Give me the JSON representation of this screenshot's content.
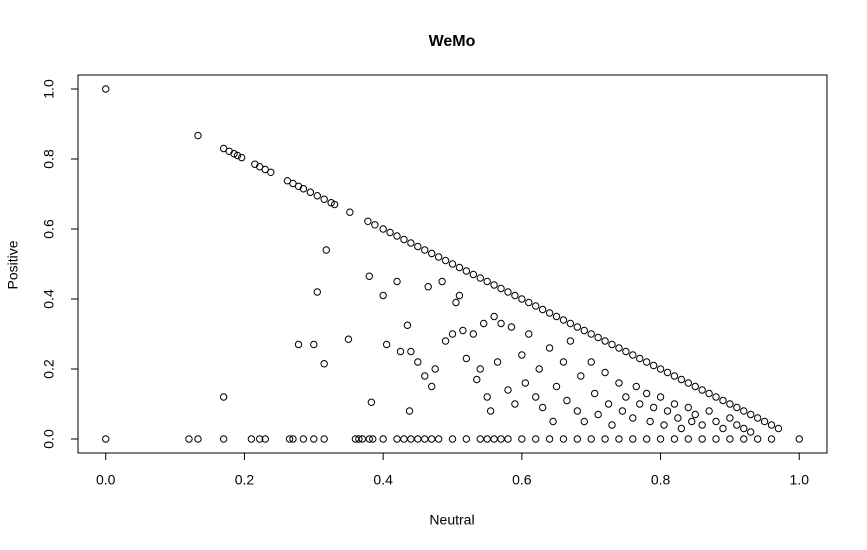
{
  "chart_data": {
    "type": "scatter",
    "title": "WeMo",
    "x_label": "Neutral",
    "y_label": "Positive",
    "xlim": [
      -0.04,
      1.04
    ],
    "ylim": [
      -0.04,
      1.04
    ],
    "xticks": [
      {
        "value": 0,
        "label": "0.0"
      },
      0.2,
      0.4,
      0.6,
      0.8,
      {
        "value": 1,
        "label": "1.0"
      }
    ],
    "yticks": [
      {
        "value": 0,
        "label": "0.0"
      },
      0.2,
      0.4,
      0.6,
      0.8,
      {
        "value": 1,
        "label": "1.0"
      }
    ],
    "color": "#000000",
    "x": [
      0,
      0.133,
      0.17,
      0.178,
      0.185,
      0.19,
      0.196,
      0.215,
      0.222,
      0.23,
      0.238,
      0.262,
      0.27,
      0.278,
      0.285,
      0.295,
      0.305,
      0.315,
      0.325,
      0.33,
      0.352,
      0.378,
      0.388,
      0.4,
      0.41,
      0.42,
      0.43,
      0.44,
      0.45,
      0.46,
      0.47,
      0.48,
      0.49,
      0.5,
      0.51,
      0.52,
      0.53,
      0.54,
      0.55,
      0.56,
      0.57,
      0.58,
      0.59,
      0.6,
      0.61,
      0.62,
      0.63,
      0.64,
      0.65,
      0.66,
      0.67,
      0.68,
      0.69,
      0.7,
      0.71,
      0.72,
      0.73,
      0.74,
      0.75,
      0.76,
      0.77,
      0.78,
      0.79,
      0.8,
      0.81,
      0.82,
      0.83,
      0.84,
      0.85,
      0.86,
      0.87,
      0.88,
      0.89,
      0.9,
      0.91,
      0.92,
      0.93,
      0.94,
      0.95,
      0.96,
      0.97,
      0,
      0.12,
      0.133,
      0.17,
      0.21,
      0.222,
      0.23,
      0.265,
      0.27,
      0.285,
      0.3,
      0.315,
      0.36,
      0.365,
      0.37,
      0.38,
      0.385,
      0.4,
      0.42,
      0.43,
      0.44,
      0.45,
      0.46,
      0.47,
      0.48,
      0.5,
      0.52,
      0.54,
      0.55,
      0.56,
      0.57,
      0.58,
      0.6,
      0.62,
      0.64,
      0.66,
      0.68,
      0.7,
      0.72,
      0.74,
      0.76,
      0.78,
      0.8,
      0.82,
      0.84,
      0.86,
      0.88,
      0.9,
      0.92,
      0.94,
      0.96,
      1,
      0.17,
      0.278,
      0.3,
      0.305,
      0.315,
      0.318,
      0.35,
      0.38,
      0.383,
      0.4,
      0.405,
      0.42,
      0.425,
      0.435,
      0.438,
      0.44,
      0.45,
      0.46,
      0.465,
      0.47,
      0.475,
      0.485,
      0.49,
      0.5,
      0.505,
      0.51,
      0.515,
      0.52,
      0.53,
      0.535,
      0.54,
      0.545,
      0.55,
      0.555,
      0.56,
      0.565,
      0.57,
      0.58,
      0.585,
      0.59,
      0.6,
      0.605,
      0.61,
      0.62,
      0.625,
      0.63,
      0.64,
      0.645,
      0.65,
      0.66,
      0.665,
      0.67,
      0.68,
      0.685,
      0.69,
      0.7,
      0.705,
      0.71,
      0.72,
      0.725,
      0.73,
      0.74,
      0.745,
      0.75,
      0.76,
      0.765,
      0.77,
      0.78,
      0.785,
      0.79,
      0.8,
      0.805,
      0.81,
      0.82,
      0.825,
      0.83,
      0.84,
      0.845,
      0.85,
      0.86,
      0.87,
      0.88,
      0.89,
      0.9,
      0.91,
      0.92,
      0.93
    ],
    "y": [
      1,
      0.867,
      0.83,
      0.822,
      0.815,
      0.81,
      0.804,
      0.785,
      0.778,
      0.77,
      0.762,
      0.738,
      0.73,
      0.722,
      0.715,
      0.705,
      0.695,
      0.685,
      0.675,
      0.67,
      0.648,
      0.622,
      0.612,
      0.6,
      0.59,
      0.58,
      0.57,
      0.56,
      0.55,
      0.54,
      0.53,
      0.52,
      0.51,
      0.5,
      0.49,
      0.48,
      0.47,
      0.46,
      0.45,
      0.44,
      0.43,
      0.42,
      0.41,
      0.4,
      0.39,
      0.38,
      0.37,
      0.36,
      0.35,
      0.34,
      0.33,
      0.32,
      0.31,
      0.3,
      0.29,
      0.28,
      0.27,
      0.26,
      0.25,
      0.24,
      0.23,
      0.22,
      0.21,
      0.2,
      0.19,
      0.18,
      0.17,
      0.16,
      0.15,
      0.14,
      0.13,
      0.12,
      0.11,
      0.1,
      0.09,
      0.08,
      0.07,
      0.06,
      0.05,
      0.04,
      0.03,
      0,
      0,
      0,
      0,
      0,
      0,
      0,
      0,
      0,
      0,
      0,
      0,
      0,
      0,
      0,
      0,
      0,
      0,
      0,
      0,
      0,
      0,
      0,
      0,
      0,
      0,
      0,
      0,
      0,
      0,
      0,
      0,
      0,
      0,
      0,
      0,
      0,
      0,
      0,
      0,
      0,
      0,
      0,
      0,
      0,
      0,
      0,
      0,
      0,
      0,
      0,
      0,
      0.12,
      0.27,
      0.27,
      0.42,
      0.215,
      0.54,
      0.285,
      0.465,
      0.105,
      0.41,
      0.27,
      0.45,
      0.25,
      0.325,
      0.08,
      0.25,
      0.22,
      0.18,
      0.435,
      0.15,
      0.2,
      0.45,
      0.28,
      0.3,
      0.39,
      0.41,
      0.31,
      0.23,
      0.3,
      0.17,
      0.2,
      0.33,
      0.12,
      0.08,
      0.35,
      0.22,
      0.33,
      0.14,
      0.32,
      0.1,
      0.24,
      0.16,
      0.3,
      0.12,
      0.2,
      0.09,
      0.26,
      0.05,
      0.15,
      0.22,
      0.11,
      0.28,
      0.08,
      0.18,
      0.05,
      0.22,
      0.13,
      0.07,
      0.19,
      0.1,
      0.04,
      0.16,
      0.08,
      0.12,
      0.06,
      0.15,
      0.1,
      0.13,
      0.05,
      0.09,
      0.12,
      0.04,
      0.08,
      0.1,
      0.06,
      0.03,
      0.09,
      0.05,
      0.07,
      0.04,
      0.08,
      0.05,
      0.03,
      0.06,
      0.04,
      0.03,
      0.02
    ]
  }
}
